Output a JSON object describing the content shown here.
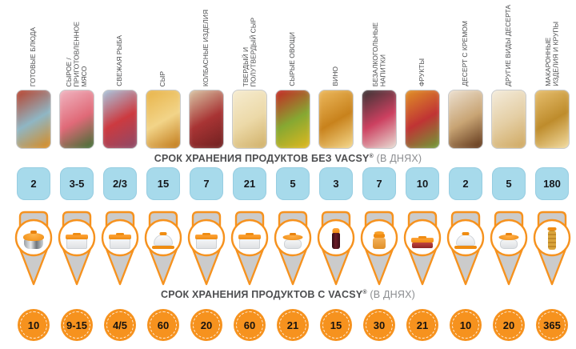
{
  "headers": {
    "without": {
      "main": "СРОК ХРАНЕНИЯ ПРОДУКТОВ БЕЗ VACSY",
      "reg": "®",
      "suffix": "(В ДНЯХ)"
    },
    "with": {
      "main": "СРОК ХРАНЕНИЯ ПРОДУКТОВ С VACSY",
      "reg": "®",
      "suffix": "(В ДНЯХ)"
    }
  },
  "colors": {
    "accent_orange": "#f6921e",
    "badge_blue": "#a7daeb",
    "pin_gray": "#cbcbcb",
    "header_dark": "#4d4e50",
    "header_gray": "#8b8d90",
    "number_dark": "#15181c"
  },
  "columns": [
    {
      "category": "ГОТОВЫЕ БЛЮДА",
      "days_without": "2",
      "days_with": "10",
      "container": "pot",
      "photo_colors": [
        "#b8432e",
        "#8fb6c4",
        "#d98a1e"
      ]
    },
    {
      "category": "СЫРОЕ /\nПРИГОТОВЛЕННОЕ\nМЯСО",
      "days_without": "3-5",
      "days_with": "9-15",
      "container": "box",
      "photo_colors": [
        "#f0b4c0",
        "#e06a78",
        "#3e6e33"
      ]
    },
    {
      "category": "СВЕЖАЯ РЫБА",
      "days_without": "2/3",
      "days_with": "4/5",
      "container": "box",
      "photo_colors": [
        "#a8c4dc",
        "#cc3a40",
        "#8c4a68"
      ]
    },
    {
      "category": "СЫР",
      "days_without": "15",
      "days_with": "60",
      "container": "dome",
      "photo_colors": [
        "#e8b44a",
        "#f2d488",
        "#c07818"
      ]
    },
    {
      "category": "КОЛБАСНЫЕ ИЗДЕЛИЯ",
      "days_without": "7",
      "days_with": "20",
      "container": "box",
      "photo_colors": [
        "#d8c4a4",
        "#a83434",
        "#6e2020"
      ]
    },
    {
      "category": "ТВЕРДЫЙ И\nПОЛУТВЕРДЫЙ СЫР",
      "days_without": "21",
      "days_with": "60",
      "container": "box",
      "photo_colors": [
        "#f6ecd0",
        "#ecd9a8",
        "#d0b068"
      ]
    },
    {
      "category": "СЫРЫЕ ОВОЩИ",
      "days_without": "5",
      "days_with": "21",
      "container": "round",
      "photo_colors": [
        "#c42824",
        "#86a832",
        "#e0b81e"
      ]
    },
    {
      "category": "ВИНО",
      "days_without": "3",
      "days_with": "15",
      "container": "bottle",
      "photo_colors": [
        "#ecb85c",
        "#c8821c",
        "#f4d88c"
      ]
    },
    {
      "category": "БЕЗАЛКОГОЛЬНЫЕ\nНАПИТКИ",
      "days_without": "7",
      "days_with": "30",
      "container": "jar",
      "photo_colors": [
        "#3a3434",
        "#cc4060",
        "#e8ddd4"
      ]
    },
    {
      "category": "ФРУКТЫ",
      "days_without": "10",
      "days_with": "21",
      "container": "tray",
      "photo_colors": [
        "#e09026",
        "#c03434",
        "#6e9c38"
      ]
    },
    {
      "category": "ДЕСЕРТ С КРЕМОМ",
      "days_without": "2",
      "days_with": "10",
      "container": "dome",
      "photo_colors": [
        "#ece0d0",
        "#c8a474",
        "#5e3418"
      ]
    },
    {
      "category": "ДРУГИЕ ВИДЫ ДЕСЕРТА",
      "days_without": "5",
      "days_with": "20",
      "container": "round",
      "photo_colors": [
        "#f4ecdc",
        "#e4cea4",
        "#cfa860"
      ]
    },
    {
      "category": "МАКАРОННЫЕ\nИЗДЕЛИЯ И КРУПЫ",
      "days_without": "180",
      "days_with": "365",
      "container": "tube",
      "photo_colors": [
        "#e6be6e",
        "#be8c2c",
        "#f2dca2"
      ]
    }
  ],
  "chart_data": {
    "type": "table",
    "title": "Срок хранения продуктов без/с VACSY (в днях)",
    "categories": [
      "ГОТОВЫЕ БЛЮДА",
      "СЫРОЕ / ПРИГОТОВЛЕННОЕ МЯСО",
      "СВЕЖАЯ РЫБА",
      "СЫР",
      "КОЛБАСНЫЕ ИЗДЕЛИЯ",
      "ТВЕРДЫЙ И ПОЛУТВЕРДЫЙ СЫР",
      "СЫРЫЕ ОВОЩИ",
      "ВИНО",
      "БЕЗАЛКОГОЛЬНЫЕ НАПИТКИ",
      "ФРУКТЫ",
      "ДЕСЕРТ С КРЕМОМ",
      "ДРУГИЕ ВИДЫ ДЕСЕРТА",
      "МАКАРОННЫЕ ИЗДЕЛИЯ И КРУПЫ"
    ],
    "series": [
      {
        "name": "СРОК ХРАНЕНИЯ ПРОДУКТОВ БЕЗ VACSY® (В ДНЯХ)",
        "values": [
          "2",
          "3-5",
          "2/3",
          "15",
          "7",
          "21",
          "5",
          "3",
          "7",
          "10",
          "2",
          "5",
          "180"
        ]
      },
      {
        "name": "СРОК ХРАНЕНИЯ ПРОДУКТОВ С VACSY® (В ДНЯХ)",
        "values": [
          "10",
          "9-15",
          "4/5",
          "60",
          "20",
          "60",
          "21",
          "15",
          "30",
          "21",
          "10",
          "20",
          "365"
        ]
      }
    ],
    "legend_position": "none",
    "grid": false
  }
}
